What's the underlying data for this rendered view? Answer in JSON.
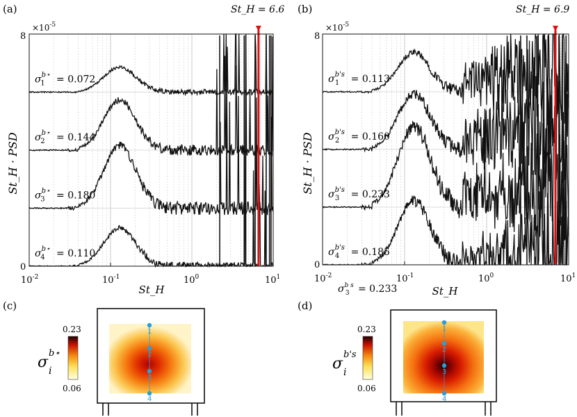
{
  "figure": {
    "panels": [
      {
        "label": "(a)",
        "marker_text": "St_H = 6.6",
        "marker_value": 6.6,
        "exponent_label": "×10",
        "exponent_power": "-5",
        "ylabel": "St_H · PSD",
        "xlabel": "St_H",
        "bottom_note": "",
        "sigma_sup": "b⋆"
      },
      {
        "label": "(b)",
        "marker_text": "St_H = 6.9",
        "marker_value": 6.9,
        "exponent_label": "×10",
        "exponent_power": "-5",
        "ylabel": "St_H · PSD",
        "xlabel": "St_H",
        "bottom_note": "σ3^{b s} = 0.233",
        "sigma_sup": "b's"
      }
    ],
    "maps": [
      {
        "label": "(c)",
        "cbar_max": "0.23",
        "cbar_min": "0.06",
        "symbol": "σ_i",
        "sup": "b⋆",
        "points": [
          "1",
          "2",
          "3",
          "4"
        ],
        "hotspot": 3
      },
      {
        "label": "(d)",
        "cbar_max": "0.23",
        "cbar_min": "0.06",
        "symbol": "σ_i",
        "sup": "b's",
        "points": [
          "1",
          "2",
          "3",
          "4"
        ],
        "hotspot": 3
      }
    ],
    "colors": {
      "line": "#111111",
      "marker": "#e01010",
      "probe": "#2a9fd6",
      "grid": "#bbbbbb"
    }
  },
  "chart_data": [
    {
      "type": "line",
      "title": "",
      "xlabel": "St_H",
      "ylabel": "St_H · PSD",
      "xscale": "log",
      "xlim": [
        0.01,
        10
      ],
      "ylim": [
        0,
        8
      ],
      "y_multiplier": "×10^-5",
      "x_ticks": [
        "10^-2",
        "10^-1",
        "10^0",
        "10^1"
      ],
      "y_ticks": [
        "0",
        "8"
      ],
      "grid": "vertical dotted",
      "vertical_marker": {
        "x": 6.6,
        "label": "St_H = 6.6"
      },
      "series": [
        {
          "sigma_label": "σ1^{b⋆} = 0.072",
          "sigma": 0.072,
          "baseline": 6.0
        },
        {
          "sigma_label": "σ2^{b⋆} = 0.144",
          "sigma": 0.144,
          "baseline": 4.0
        },
        {
          "sigma_label": "σ3^{b⋆} = 0.180",
          "sigma": 0.18,
          "baseline": 2.0
        },
        {
          "sigma_label": "σ4^{b⋆} = 0.110",
          "sigma": 0.11,
          "baseline": 0.0
        }
      ]
    },
    {
      "type": "line",
      "title": "",
      "xlabel": "St_H",
      "ylabel": "St_H · PSD",
      "xscale": "log",
      "xlim": [
        0.01,
        10
      ],
      "ylim": [
        0,
        8
      ],
      "y_multiplier": "×10^-5",
      "x_ticks": [
        "10^-2",
        "10^-1",
        "10^0",
        "10^1"
      ],
      "y_ticks": [
        "0",
        "8"
      ],
      "grid": "vertical dotted",
      "vertical_marker": {
        "x": 6.9,
        "label": "St_H = 6.9"
      },
      "series": [
        {
          "sigma_label": "σ1^{b's} = 0.113",
          "sigma": 0.113,
          "baseline": 6.0
        },
        {
          "sigma_label": "σ2^{b's} = 0.160",
          "sigma": 0.16,
          "baseline": 4.0
        },
        {
          "sigma_label": "σ3^{b's} = 0.233",
          "sigma": 0.233,
          "baseline": 2.0
        },
        {
          "sigma_label": "σ4^{b's} = 0.185",
          "sigma": 0.185,
          "baseline": 0.0
        }
      ]
    }
  ]
}
